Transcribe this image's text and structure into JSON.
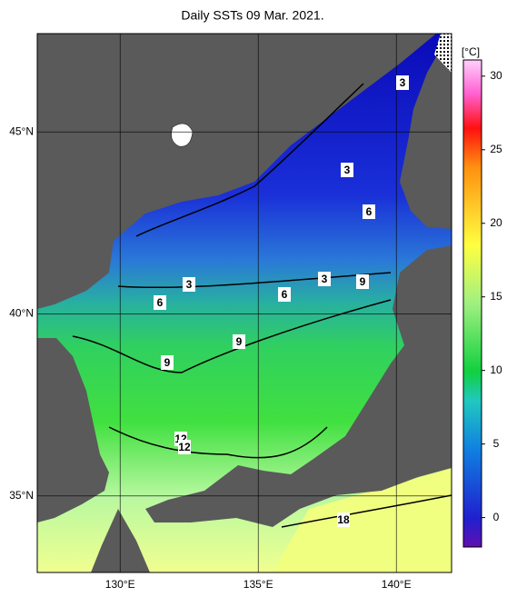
{
  "title": "Daily SSTs 09 Mar. 2021.",
  "map": {
    "lonlim": [
      127,
      142
    ],
    "latlim": [
      32.9,
      47.7
    ],
    "lon_ticks": [
      {
        "value": 130,
        "label": "130°E"
      },
      {
        "value": 135,
        "label": "135°E"
      },
      {
        "value": 140,
        "label": "140°E"
      }
    ],
    "lat_ticks": [
      {
        "value": 35,
        "label": "35°N"
      },
      {
        "value": 40,
        "label": "40°N"
      },
      {
        "value": 45,
        "label": "45°N"
      }
    ],
    "contour_labels": [
      3,
      3,
      6,
      3,
      3,
      9,
      6,
      6,
      9,
      9,
      12,
      12,
      18
    ]
  },
  "colorbar": {
    "unit": "[°C]",
    "lim": [
      -2,
      31.1
    ],
    "ticks": [
      0,
      5,
      10,
      15,
      20,
      25,
      30
    ]
  }
}
